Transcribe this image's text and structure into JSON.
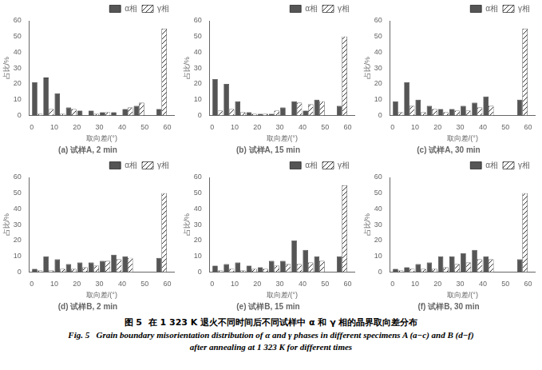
{
  "title": "图 5  在 1 323 K 退火不同时间后不同试样中 α 和 γ 相的晶界取向差分布",
  "subtitle": [
    "Fig. 5   Grain boundary misorientation distribution of α and γ phases in different specimens A (a−c) and B (d−f)",
    "after annealing at 1 323 K for different times"
  ],
  "chart_data": [
    {
      "type": "bar",
      "title": "(a) 试样A, 2 min",
      "xlabel": "取向差/(°)",
      "ylabel": "占比/%",
      "x": [
        2.5,
        7.5,
        12.5,
        17.5,
        22.5,
        27.5,
        32.5,
        37.5,
        42.5,
        47.5,
        57.5
      ],
      "series": [
        {
          "name": "α相",
          "color": "#555555",
          "values": [
            21,
            24,
            14,
            5,
            3,
            3,
            2,
            2,
            4,
            6,
            4
          ]
        },
        {
          "name": "γ相",
          "color": "#ffffff",
          "values": [
            1,
            4,
            1,
            4,
            0,
            1,
            2,
            0,
            5,
            8,
            55
          ]
        }
      ],
      "xlim": [
        -1,
        63
      ],
      "xticks": [
        0,
        10,
        20,
        30,
        40,
        50,
        60
      ],
      "ylim": [
        0,
        60
      ],
      "yticks": [
        0,
        10,
        20,
        30,
        40,
        50,
        60
      ],
      "grid": false,
      "legend": "upper right"
    },
    {
      "type": "bar",
      "title": "(b) 试样A, 15 min",
      "xlabel": "取向差/(°)",
      "ylabel": "占比/%",
      "x": [
        2.5,
        7.5,
        12.5,
        17.5,
        22.5,
        27.5,
        32.5,
        37.5,
        42.5,
        47.5,
        57.5
      ],
      "series": [
        {
          "name": "α相",
          "color": "#555555",
          "values": [
            23,
            20,
            9,
            2,
            1,
            1,
            5,
            9,
            3,
            10,
            6
          ]
        },
        {
          "name": "γ相",
          "color": "#ffffff",
          "values": [
            3,
            4,
            2,
            1,
            1,
            3,
            0,
            8,
            7,
            9,
            50
          ]
        }
      ],
      "xlim": [
        -1,
        63
      ],
      "xticks": [
        0,
        10,
        20,
        30,
        40,
        50,
        60
      ],
      "ylim": [
        0,
        60
      ],
      "yticks": [
        0,
        10,
        20,
        30,
        40,
        50,
        60
      ],
      "grid": false,
      "legend": "upper right"
    },
    {
      "type": "bar",
      "title": "(c) 试样A, 30 min",
      "xlabel": "取向差/(°)",
      "ylabel": "占比/%",
      "x": [
        2.5,
        7.5,
        12.5,
        17.5,
        22.5,
        27.5,
        32.5,
        37.5,
        42.5,
        57.5
      ],
      "series": [
        {
          "name": "α相",
          "color": "#555555",
          "values": [
            9,
            21,
            10,
            6,
            4,
            4,
            6,
            8,
            12,
            10
          ]
        },
        {
          "name": "γ相",
          "color": "#ffffff",
          "values": [
            2,
            6,
            2,
            4,
            2,
            3,
            3,
            5,
            6,
            55
          ]
        }
      ],
      "xlim": [
        -1,
        63
      ],
      "xticks": [
        0,
        10,
        20,
        30,
        40,
        50,
        60
      ],
      "ylim": [
        0,
        60
      ],
      "yticks": [
        0,
        10,
        20,
        30,
        40,
        50,
        60
      ],
      "grid": false,
      "legend": "upper right"
    },
    {
      "type": "bar",
      "title": "(d) 试样B, 2 min",
      "xlabel": "取向差/(°)",
      "ylabel": "占比/%",
      "x": [
        2.5,
        7.5,
        12.5,
        17.5,
        22.5,
        27.5,
        32.5,
        37.5,
        42.5,
        57.5
      ],
      "series": [
        {
          "name": "α相",
          "color": "#555555",
          "values": [
            2,
            10,
            8,
            5,
            6,
            6,
            7,
            11,
            10,
            9
          ]
        },
        {
          "name": "γ相",
          "color": "#ffffff",
          "values": [
            1,
            1,
            2,
            2,
            3,
            4,
            7,
            8,
            9,
            50
          ]
        }
      ],
      "xlim": [
        -1,
        63
      ],
      "xticks": [
        0,
        10,
        20,
        30,
        40,
        50,
        60
      ],
      "ylim": [
        0,
        60
      ],
      "yticks": [
        0,
        10,
        20,
        30,
        40,
        50,
        60
      ],
      "grid": false,
      "legend": "upper right"
    },
    {
      "type": "bar",
      "title": "(e) 试样B, 15 min",
      "xlabel": "取向差/(°)",
      "ylabel": "占比/%",
      "x": [
        2.5,
        7.5,
        12.5,
        17.5,
        22.5,
        27.5,
        32.5,
        37.5,
        42.5,
        47.5,
        57.5
      ],
      "series": [
        {
          "name": "α相",
          "color": "#555555",
          "values": [
            4,
            5,
            6,
            4,
            3,
            7,
            7,
            20,
            14,
            10,
            10
          ]
        },
        {
          "name": "γ相",
          "color": "#ffffff",
          "values": [
            1,
            2,
            1,
            2,
            2,
            4,
            5,
            5,
            6,
            7,
            55
          ]
        }
      ],
      "xlim": [
        -1,
        63
      ],
      "xticks": [
        0,
        10,
        20,
        30,
        40,
        50,
        60
      ],
      "ylim": [
        0,
        60
      ],
      "yticks": [
        0,
        10,
        20,
        30,
        40,
        50,
        60
      ],
      "grid": false,
      "legend": "upper right"
    },
    {
      "type": "bar",
      "title": "(f) 试样B, 30 min",
      "xlabel": "取向差/(°)",
      "ylabel": "占比/%",
      "x": [
        2.5,
        7.5,
        12.5,
        17.5,
        22.5,
        27.5,
        32.5,
        37.5,
        42.5,
        57.5
      ],
      "series": [
        {
          "name": "α相",
          "color": "#555555",
          "values": [
            2,
            3,
            5,
            6,
            10,
            10,
            12,
            14,
            10,
            8
          ]
        },
        {
          "name": "γ相",
          "color": "#ffffff",
          "values": [
            1,
            2,
            2,
            2,
            3,
            5,
            6,
            8,
            8,
            50
          ]
        }
      ],
      "xlim": [
        -1,
        63
      ],
      "xticks": [
        0,
        10,
        20,
        30,
        40,
        50,
        60
      ],
      "ylim": [
        0,
        60
      ],
      "yticks": [
        0,
        10,
        20,
        30,
        40,
        50,
        60
      ],
      "grid": false,
      "legend": "upper right"
    }
  ]
}
